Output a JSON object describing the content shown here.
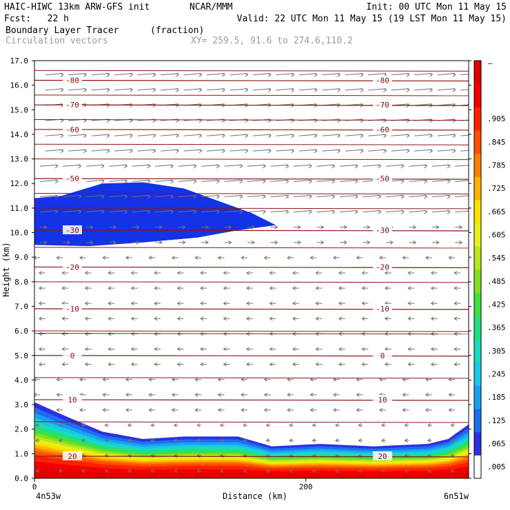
{
  "header": {
    "model_line": "HAIC-HIWC 13km ARW-GFS init",
    "org": "NCAR/MMM",
    "init": "Init: 00 UTC Mon 11 May 15",
    "fcst": "Fcst:   22 h",
    "valid": "Valid: 22 UTC Mon 11 May 15 (19 LST Mon 11 May 15)",
    "field": "Boundary Layer Tracer",
    "units": "(fraction)",
    "vectors": "Circulation vectors",
    "xy": "XY= 259.5, 91.6 to 274.6,110.2"
  },
  "chart_data": {
    "type": "heatmap",
    "title": "Boundary Layer Tracer",
    "units": "(fraction)",
    "xlabel": "Distance (km)",
    "ylabel": "Height (km)",
    "x_ticks": [
      0,
      200
    ],
    "x_endpoints": [
      "4n53w",
      "6n51w"
    ],
    "xlim": [
      0,
      320
    ],
    "ylim": [
      0,
      17
    ],
    "y_ticks": [
      "0.0",
      "1.0",
      "2.0",
      "3.0",
      "4.0",
      "5.0",
      "6.0",
      "7.0",
      "8.0",
      "9.0",
      "10.0",
      "11.0",
      "12.0",
      "13.0",
      "14.0",
      "15.0",
      "16.0",
      "17.0"
    ],
    "colorbar": {
      "labels": [
        ".005",
        ".065",
        ".125",
        ".185",
        ".245",
        ".305",
        ".365",
        ".425",
        ".485",
        ".545",
        ".605",
        ".665",
        ".725",
        ".785",
        ".845",
        ".905",
        ""
      ],
      "top_label": "—",
      "colors": [
        "#ffffff",
        "#2a32e0",
        "#1e6ef0",
        "#1aa0f0",
        "#18c8e8",
        "#18dcc0",
        "#20e080",
        "#40e040",
        "#80e020",
        "#b8e818",
        "#e8f018",
        "#ffe000",
        "#ffb400",
        "#ff8000",
        "#ff5000",
        "#ff2000",
        "#f00000",
        "#e00000"
      ]
    },
    "contours": [
      {
        "label": "-80",
        "height_km": 16.2
      },
      {
        "label": "-70",
        "height_km": 15.2
      },
      {
        "label": "-60",
        "height_km": 14.2
      },
      {
        "label": "-50",
        "height_km": 12.2
      },
      {
        "label": "-30",
        "height_km": 10.1
      },
      {
        "label": "-20",
        "height_km": 8.6
      },
      {
        "label": "-10",
        "height_km": 6.9
      },
      {
        "label": "0",
        "height_km": 5.0
      },
      {
        "label": "10",
        "height_km": 3.2
      },
      {
        "label": "20",
        "height_km": 0.9
      }
    ],
    "boundary_layer_top_km": [
      [
        0,
        3.1
      ],
      [
        20,
        2.6
      ],
      [
        50,
        1.9
      ],
      [
        80,
        1.6
      ],
      [
        110,
        1.7
      ],
      [
        150,
        1.7
      ],
      [
        175,
        1.3
      ],
      [
        210,
        1.4
      ],
      [
        250,
        1.3
      ],
      [
        290,
        1.4
      ],
      [
        305,
        1.6
      ],
      [
        320,
        2.2
      ]
    ],
    "upper_tracer_layer": {
      "top_km": [
        [
          0,
          11.4
        ],
        [
          20,
          11.5
        ],
        [
          50,
          12.0
        ],
        [
          80,
          12.05
        ],
        [
          110,
          11.8
        ],
        [
          140,
          11.2
        ],
        [
          160,
          10.8
        ],
        [
          178,
          10.3
        ]
      ],
      "bottom_km": [
        [
          0,
          9.5
        ],
        [
          40,
          9.45
        ],
        [
          80,
          9.6
        ],
        [
          120,
          9.8
        ],
        [
          150,
          10.1
        ],
        [
          178,
          10.3
        ]
      ],
      "value": ".005"
    }
  }
}
